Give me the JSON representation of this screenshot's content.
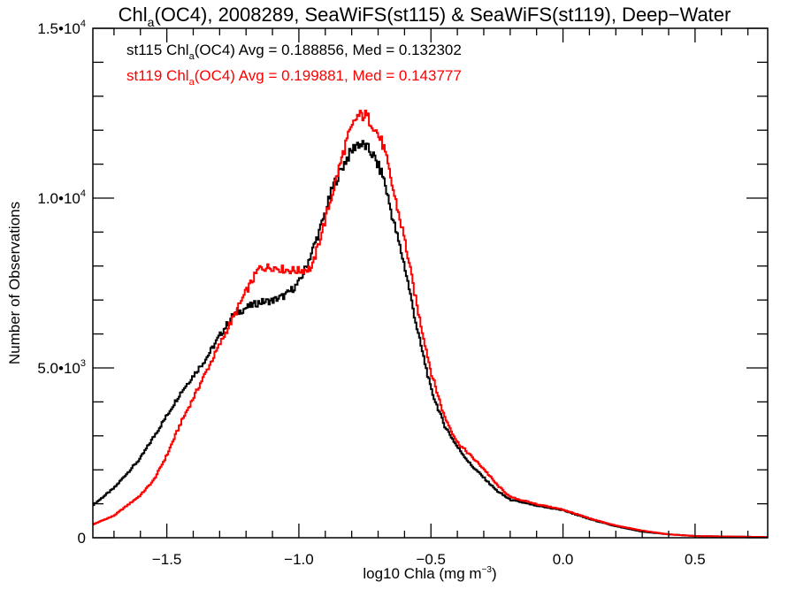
{
  "chart_data": {
    "type": "line",
    "style": "histogram-step",
    "title": "Chl_a(OC4), 2008289, SeaWiFS(st115) & SeaWiFS(st119), Deep−Water",
    "title_parts": {
      "pre": "Chl",
      "sub": "a",
      "post": "(OC4), 2008289, SeaWiFS(st115) & SeaWiFS(st119), Deep−Water"
    },
    "xlabel": "log10 Chla (mg m⁻³)",
    "xlabel_parts": {
      "pre": "log10 Chla (mg m",
      "sup": "−3",
      "post": ")"
    },
    "ylabel": "Number of Observations",
    "xlim": [
      -1.78,
      0.775
    ],
    "ylim": [
      0,
      15000
    ],
    "grid": false,
    "x_ticks": [
      {
        "value": -1.5,
        "label": "−1.5"
      },
      {
        "value": -1.0,
        "label": "−1.0"
      },
      {
        "value": -0.5,
        "label": "−0.5"
      },
      {
        "value": 0.0,
        "label": "0.0"
      },
      {
        "value": 0.5,
        "label": "0.5"
      }
    ],
    "x_minor_step": 0.1,
    "y_ticks": [
      {
        "value": 0,
        "mant": "0",
        "exp": ""
      },
      {
        "value": 5000,
        "mant": "5.0•10",
        "exp": "3"
      },
      {
        "value": 10000,
        "mant": "1.0•10",
        "exp": "4"
      },
      {
        "value": 15000,
        "mant": "1.5•10",
        "exp": "4"
      }
    ],
    "y_minor_step": 1000,
    "legend_position": "top-left",
    "series": [
      {
        "name": "st115",
        "label_pre": "st115 Chl",
        "label_sub": "a",
        "label_post": "(OC4) Avg = 0.188856, Med = 0.132302",
        "avg": 0.188856,
        "median": 0.132302,
        "color": "#000000",
        "x": [
          -1.78,
          -1.7,
          -1.6,
          -1.5,
          -1.45,
          -1.4,
          -1.35,
          -1.3,
          -1.25,
          -1.2,
          -1.15,
          -1.1,
          -1.05,
          -1.0,
          -0.97,
          -0.92,
          -0.87,
          -0.82,
          -0.78,
          -0.75,
          -0.72,
          -0.68,
          -0.65,
          -0.6,
          -0.55,
          -0.5,
          -0.45,
          -0.4,
          -0.35,
          -0.3,
          -0.25,
          -0.2,
          -0.1,
          0.0,
          0.1,
          0.2,
          0.3,
          0.4,
          0.5,
          0.775
        ],
        "y": [
          960,
          1460,
          2340,
          3590,
          4240,
          4770,
          5290,
          5940,
          6540,
          6770,
          6930,
          6980,
          7140,
          7500,
          8020,
          9060,
          10360,
          11150,
          11610,
          11540,
          11280,
          10630,
          9580,
          8020,
          6070,
          4380,
          3330,
          2680,
          2160,
          1770,
          1380,
          1120,
          940,
          810,
          550,
          340,
          180,
          100,
          50,
          20
        ]
      },
      {
        "name": "st119",
        "label_pre": "st119 Chl",
        "label_sub": "a",
        "label_post": "(OC4) Avg = 0.199881, Med = 0.143777",
        "avg": 0.199881,
        "median": 0.143777,
        "color": "#ff0000",
        "x": [
          -1.78,
          -1.7,
          -1.6,
          -1.55,
          -1.5,
          -1.45,
          -1.4,
          -1.35,
          -1.3,
          -1.25,
          -1.2,
          -1.15,
          -1.1,
          -1.05,
          -1.0,
          -0.95,
          -0.92,
          -0.87,
          -0.82,
          -0.78,
          -0.75,
          -0.72,
          -0.68,
          -0.65,
          -0.6,
          -0.55,
          -0.5,
          -0.45,
          -0.4,
          -0.35,
          -0.3,
          -0.25,
          -0.2,
          -0.1,
          0.0,
          0.1,
          0.2,
          0.3,
          0.4,
          0.5,
          0.775
        ],
        "y": [
          390,
          650,
          1250,
          1690,
          2420,
          3330,
          4110,
          4900,
          5680,
          6460,
          7240,
          7940,
          7970,
          7890,
          7860,
          7940,
          8800,
          10230,
          11670,
          12400,
          12450,
          12190,
          11540,
          10490,
          8800,
          6720,
          4900,
          3590,
          2810,
          2420,
          2030,
          1560,
          1200,
          990,
          830,
          570,
          360,
          210,
          100,
          50,
          20
        ]
      }
    ]
  }
}
